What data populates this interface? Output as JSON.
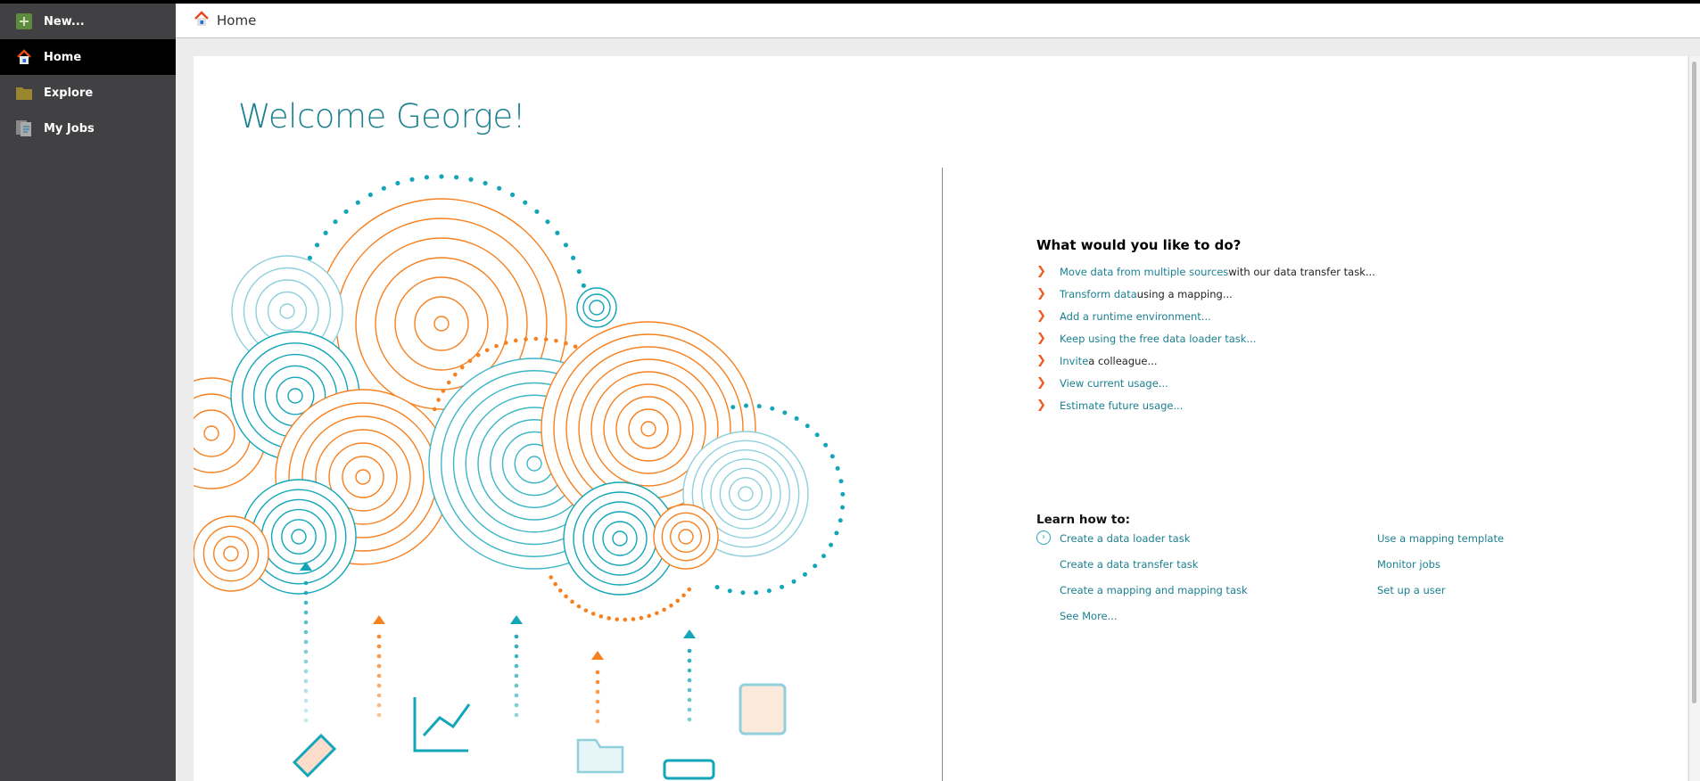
{
  "sidebar": {
    "items": [
      {
        "label": "New...",
        "icon": "plus-icon"
      },
      {
        "label": "Home",
        "icon": "home-icon",
        "active": true
      },
      {
        "label": "Explore",
        "icon": "folder-icon"
      },
      {
        "label": "My Jobs",
        "icon": "jobs-icon"
      }
    ]
  },
  "topbar": {
    "breadcrumb": "Home"
  },
  "main": {
    "welcome": "Welcome George!",
    "todo": {
      "heading": "What would you like to do?",
      "items": [
        {
          "link": "Move data from multiple sources",
          "rest": " with our data transfer task..."
        },
        {
          "link": "Transform data",
          "rest": " using a mapping..."
        },
        {
          "link": "Add a runtime environment...",
          "rest": ""
        },
        {
          "link": "Keep using the free data loader task...",
          "rest": ""
        },
        {
          "link": "Invite",
          "rest": " a colleague..."
        },
        {
          "link": "View current usage...",
          "rest": ""
        },
        {
          "link": "Estimate future usage...",
          "rest": ""
        }
      ]
    },
    "learn": {
      "heading": "Learn how to:",
      "col1": [
        "Create a data loader task",
        "Create a data transfer task",
        "Create a mapping and mapping task",
        "See More..."
      ],
      "col2": [
        "Use a mapping template",
        "Monitor jobs",
        "Set up a user"
      ]
    }
  },
  "colors": {
    "accent": "#1b8090",
    "orange": "#f7801f",
    "teal": "#12a6b8",
    "sidebar": "#414143"
  }
}
